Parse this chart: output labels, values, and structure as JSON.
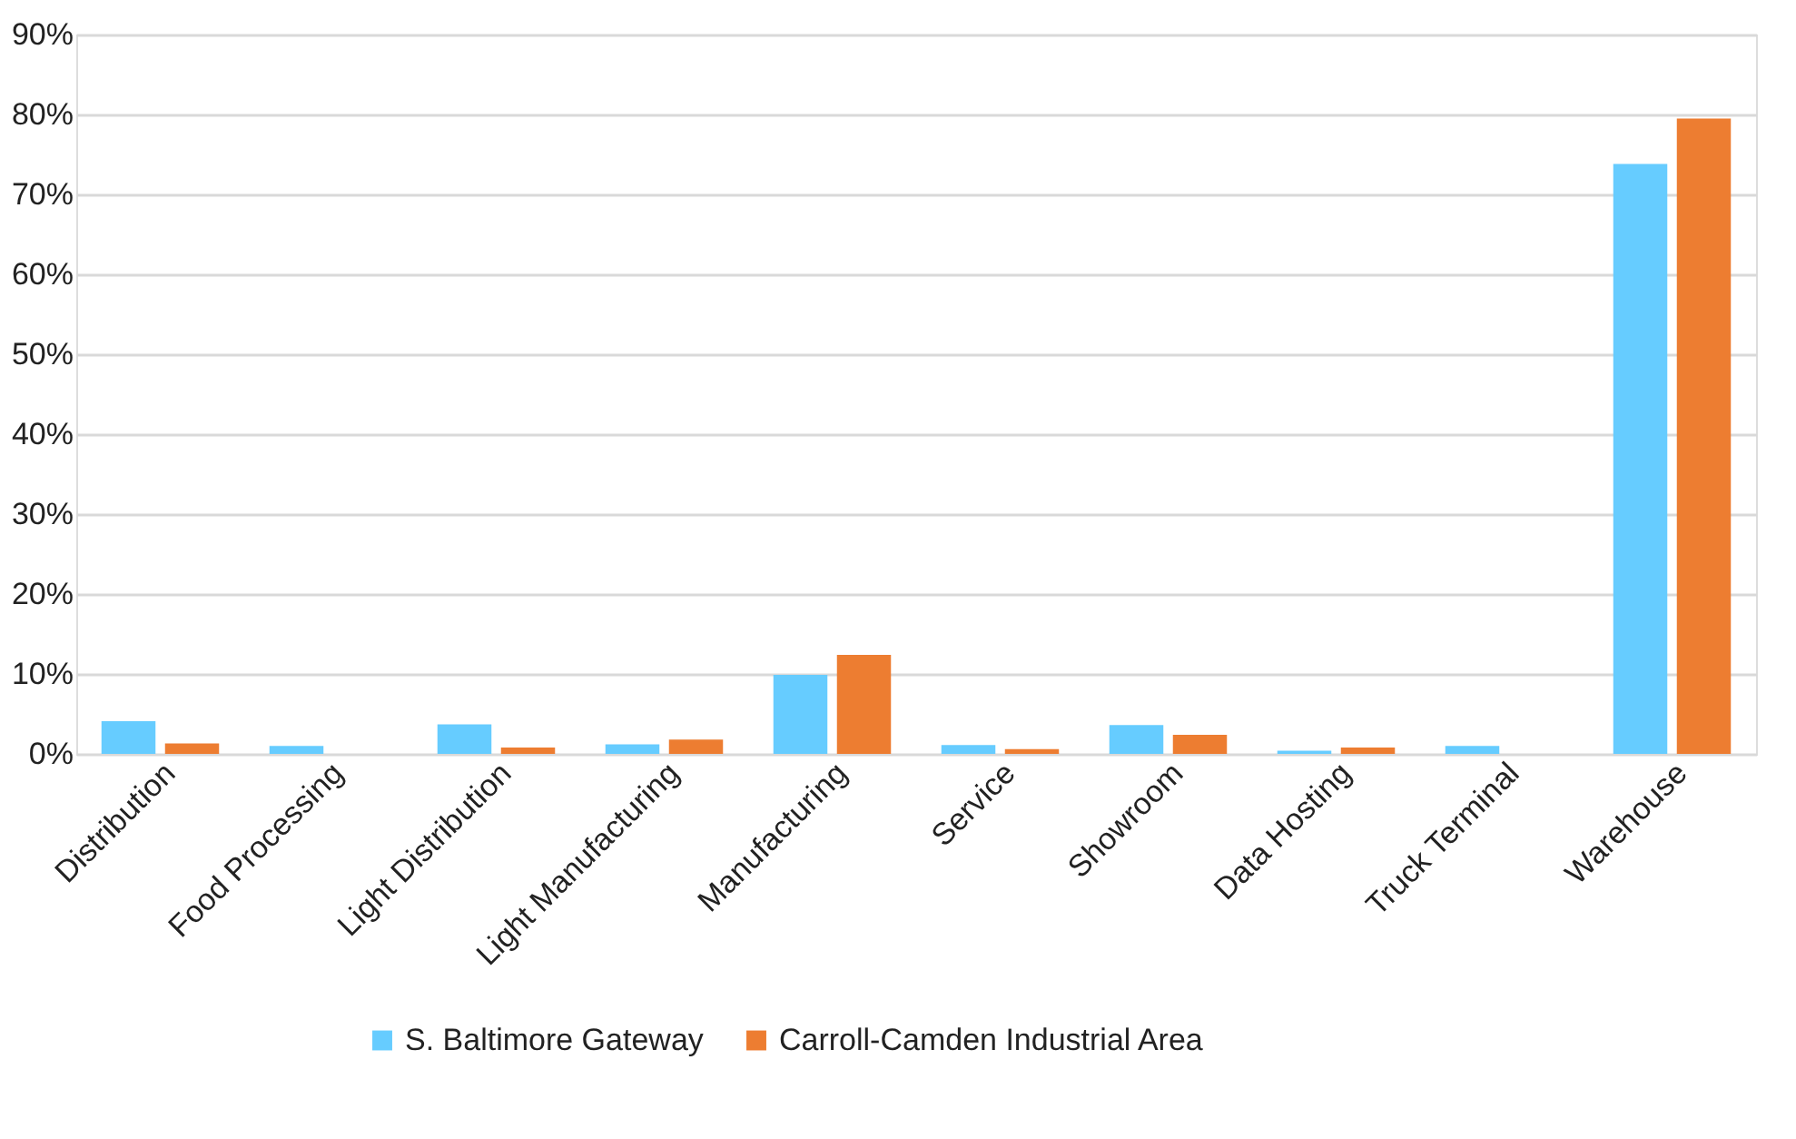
{
  "chart_data": {
    "type": "bar",
    "categories": [
      "Distribution",
      "Food Processing",
      "Light Distribution",
      "Light Manufacturing",
      "Manufacturing",
      "Service",
      "Showroom",
      "Data Hosting",
      "Truck Terminal",
      "Warehouse"
    ],
    "series": [
      {
        "name": "S. Baltimore Gateway",
        "color": "#66ccff",
        "values": [
          4.1,
          1.0,
          3.7,
          1.2,
          9.9,
          1.1,
          3.6,
          0.4,
          1.0,
          73.8
        ]
      },
      {
        "name": "Carroll-Camden Industrial Area",
        "color": "#ed7d31",
        "values": [
          1.3,
          0,
          0.8,
          1.8,
          12.4,
          0.6,
          2.4,
          0.8,
          0,
          79.5
        ]
      }
    ],
    "ylim": [
      0,
      90
    ],
    "yticks": [
      {
        "value": 0,
        "label": "0%"
      },
      {
        "value": 10,
        "label": "10%"
      },
      {
        "value": 20,
        "label": "20%"
      },
      {
        "value": 30,
        "label": "30%"
      },
      {
        "value": 40,
        "label": "40%"
      },
      {
        "value": 50,
        "label": "50%"
      },
      {
        "value": 60,
        "label": "60%"
      },
      {
        "value": 70,
        "label": "70%"
      },
      {
        "value": 80,
        "label": "80%"
      },
      {
        "value": 90,
        "label": "90%"
      }
    ],
    "grid": "y",
    "legend": "bottom"
  }
}
